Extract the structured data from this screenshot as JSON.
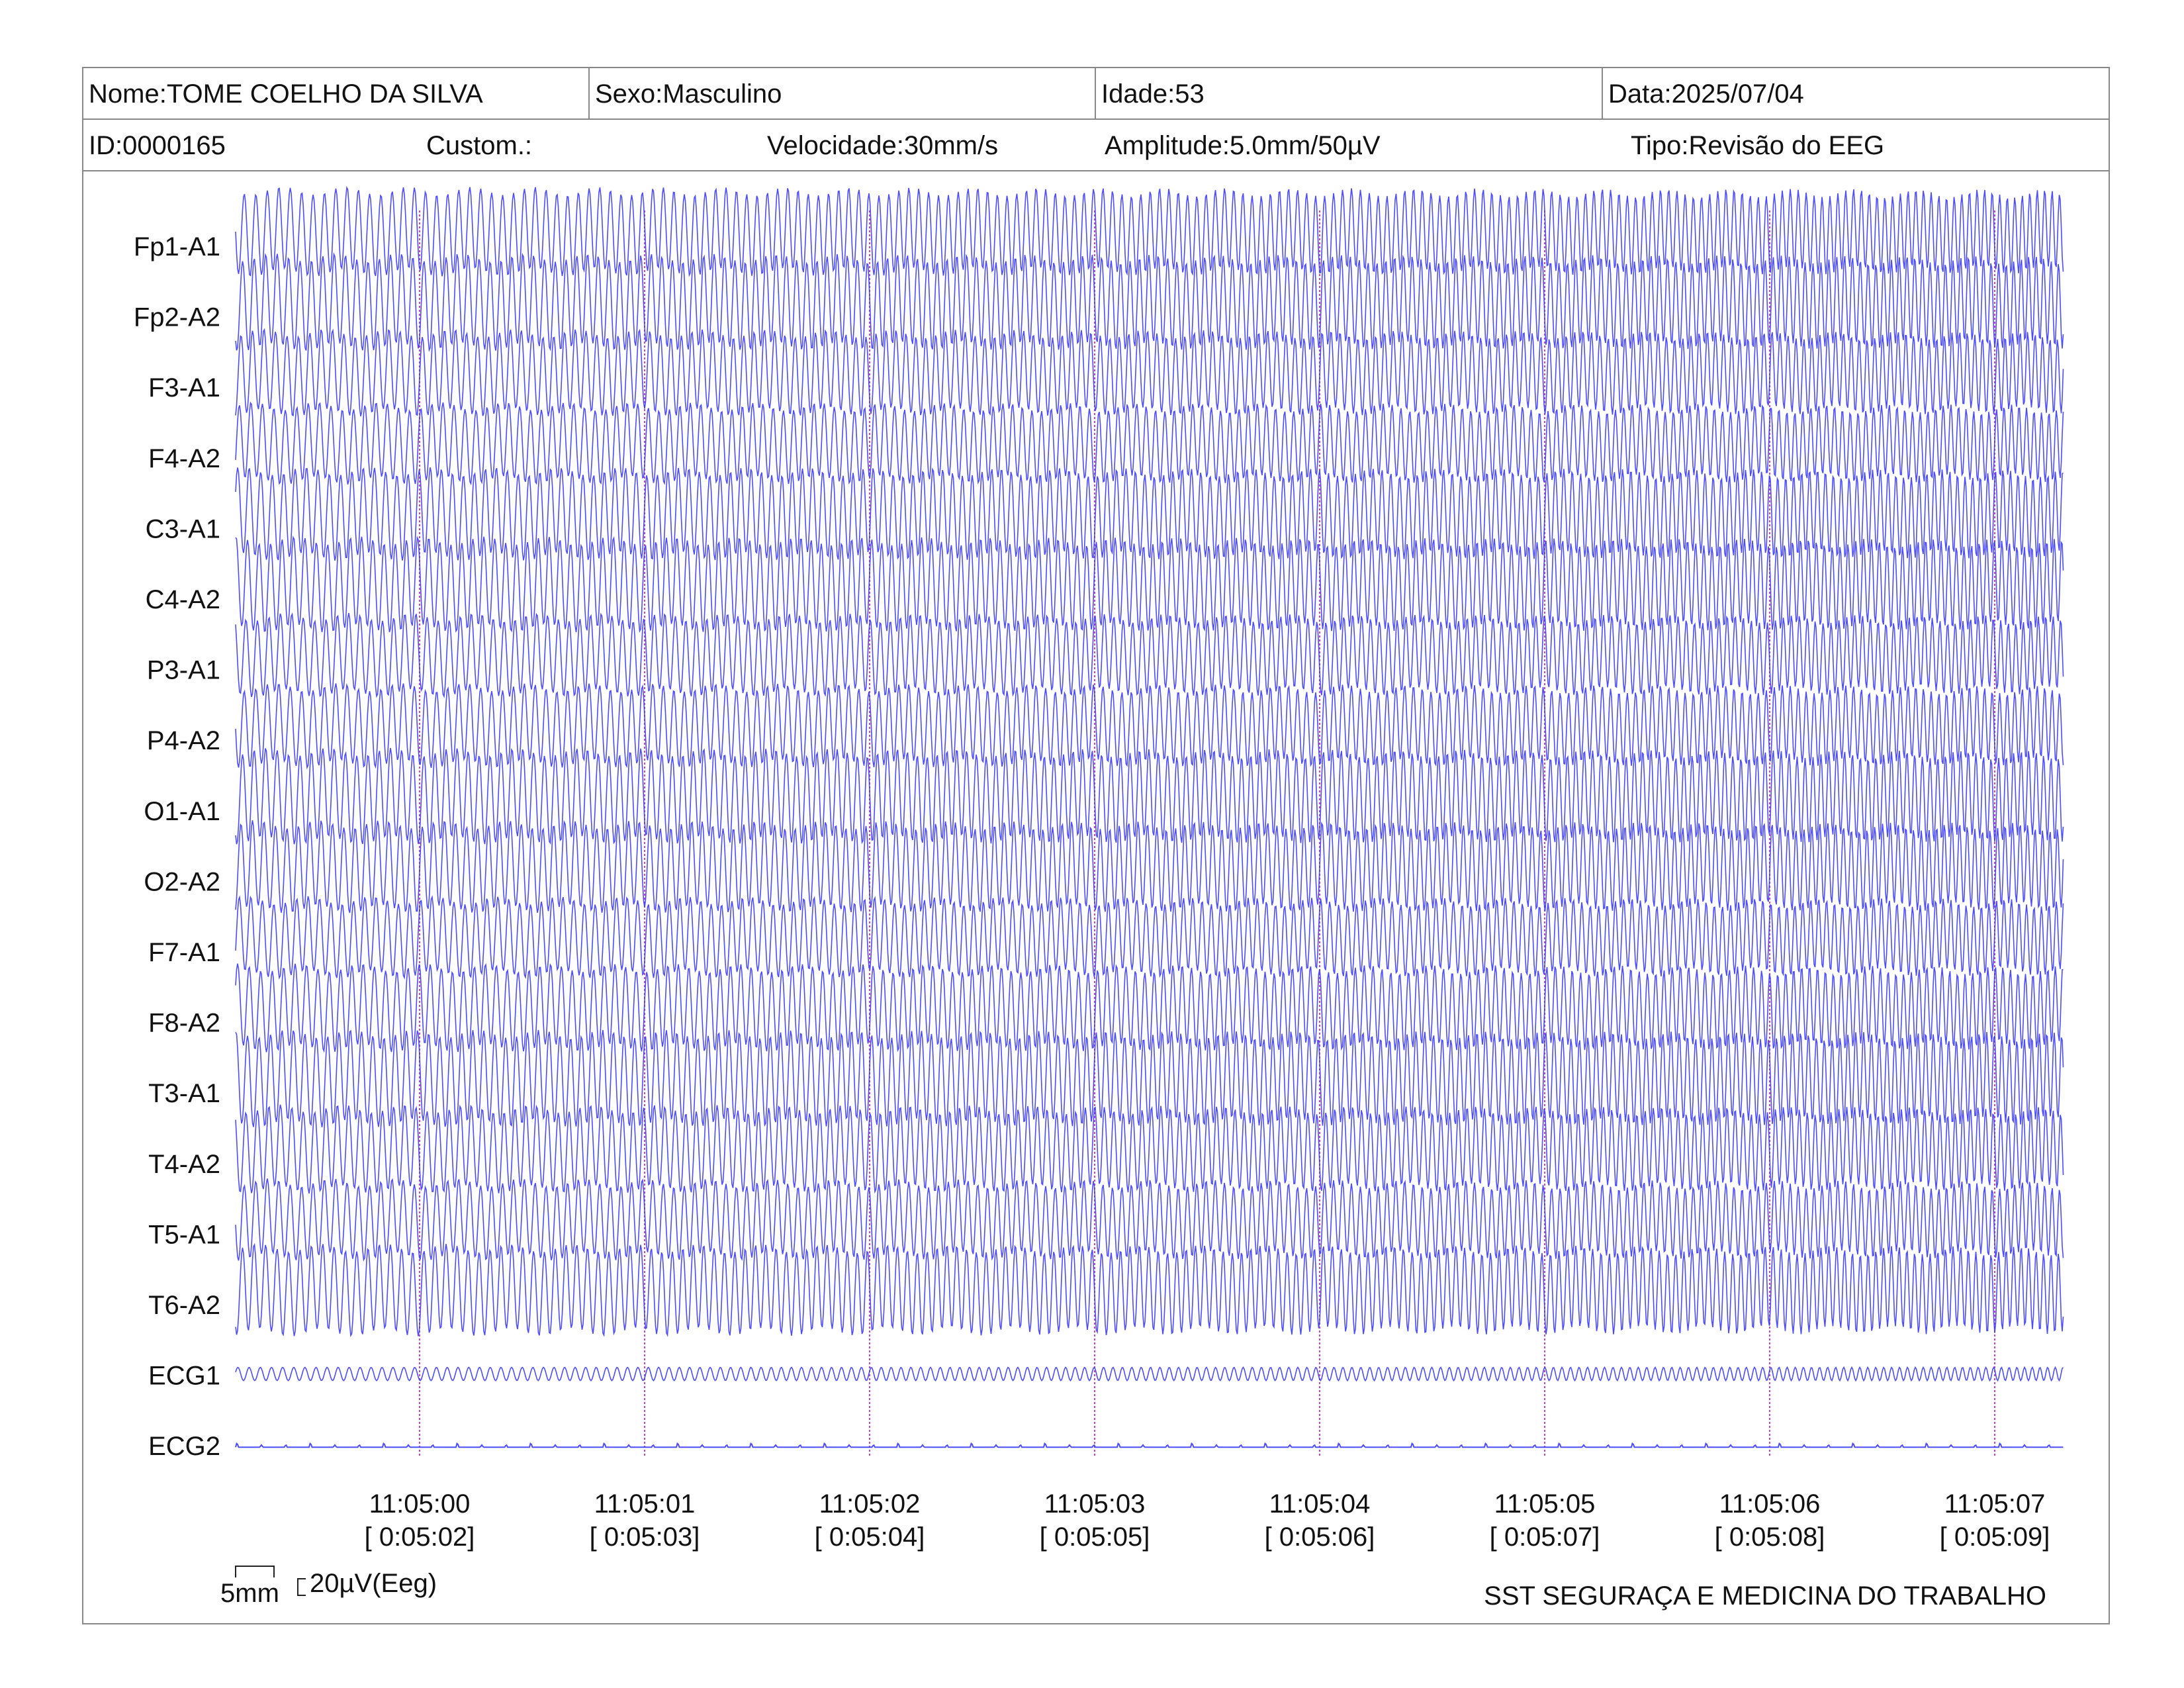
{
  "header": {
    "nome": "Nome:TOME COELHO DA SILVA",
    "sexo": "Sexo:Masculino",
    "idade": "Idade:53",
    "data": "Data:2025/07/04",
    "id": "ID:0000165",
    "custom": "Custom.:",
    "velocidade": "Velocidade:30mm/s",
    "amplitude": "Amplitude:5.0mm/50µV",
    "tipo": "Tipo:Revisão do EEG"
  },
  "chart_data": {
    "type": "line",
    "x_axis": "time",
    "trace_color": "#3a3aff",
    "marker_color": "#d040d0",
    "channels": [
      "Fp1-A1",
      "Fp2-A2",
      "F3-A1",
      "F4-A2",
      "C3-A1",
      "C4-A2",
      "P3-A1",
      "P4-A2",
      "O1-A1",
      "O2-A2",
      "F7-A1",
      "F8-A2",
      "T3-A1",
      "T4-A2",
      "T5-A1",
      "T6-A2",
      "ECG1",
      "ECG2"
    ],
    "time_marks": [
      {
        "clock": "11:05:00",
        "elapsed": "[ 0:05:02]"
      },
      {
        "clock": "11:05:01",
        "elapsed": "[ 0:05:03]"
      },
      {
        "clock": "11:05:02",
        "elapsed": "[ 0:05:04]"
      },
      {
        "clock": "11:05:03",
        "elapsed": "[ 0:05:05]"
      },
      {
        "clock": "11:05:04",
        "elapsed": "[ 0:05:06]"
      },
      {
        "clock": "11:05:05",
        "elapsed": "[ 0:05:07]"
      },
      {
        "clock": "11:05:06",
        "elapsed": "[ 0:05:08]"
      },
      {
        "clock": "11:05:07",
        "elapsed": "[ 0:05:09]"
      }
    ]
  },
  "footer": {
    "scale_time": "5mm",
    "scale_amp": "20µV(Eeg)",
    "company": "SST SEGURAÇA E MEDICINA DO TRABALHO"
  }
}
